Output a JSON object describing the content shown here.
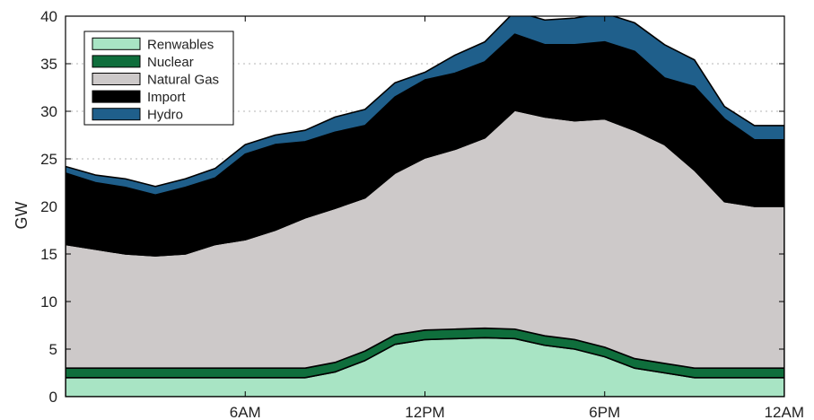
{
  "chart_data": {
    "type": "area",
    "stacked": true,
    "title": "",
    "xlabel": "",
    "ylabel": "GW",
    "xlim": [
      0,
      24
    ],
    "ylim": [
      0,
      40
    ],
    "x_ticks": [
      6,
      12,
      18,
      24
    ],
    "x_tick_labels": [
      "6AM",
      "12PM",
      "6PM",
      "12AM"
    ],
    "y_ticks": [
      0,
      5,
      10,
      15,
      20,
      25,
      30,
      35,
      40
    ],
    "y_tick_labels": [
      "0",
      "5",
      "10",
      "15",
      "20",
      "25",
      "30",
      "35",
      "40"
    ],
    "grid": "horizontal dotted",
    "legend_position": "top-left",
    "x": [
      0,
      1,
      2,
      3,
      4,
      5,
      6,
      7,
      8,
      9,
      10,
      11,
      12,
      13,
      14,
      15,
      16,
      17,
      18,
      19,
      20,
      21,
      22,
      23,
      24
    ],
    "series": [
      {
        "name": "Renwables",
        "color": "#a8e4c4",
        "values": [
          2,
          2,
          2,
          2,
          2,
          2,
          2,
          2,
          2,
          2.6,
          3.8,
          5.5,
          6,
          6.1,
          6.2,
          6.1,
          5.4,
          5,
          4.2,
          3,
          2.5,
          2,
          2,
          2,
          2
        ]
      },
      {
        "name": "Nuclear",
        "color": "#0f6e3c",
        "values": [
          1,
          1,
          1,
          1,
          1,
          1,
          1,
          1,
          1,
          1,
          1,
          1,
          1,
          1,
          1,
          1,
          1,
          1,
          1,
          1,
          1,
          1,
          1,
          1,
          1
        ]
      },
      {
        "name": "Natural Gas",
        "color": "#cdc9c9",
        "values": [
          13,
          12.5,
          12,
          11.8,
          12,
          13,
          13.5,
          14.5,
          15.8,
          16.2,
          16.1,
          17,
          18.1,
          18.9,
          20,
          23,
          23,
          23,
          24,
          24,
          23,
          20.8,
          17.5,
          17,
          17
        ]
      },
      {
        "name": "Import",
        "color": "#000000",
        "values": [
          7.5,
          7,
          7,
          6.4,
          7,
          7,
          9,
          9,
          8,
          8,
          7.6,
          8,
          8.2,
          8,
          8,
          8,
          7.6,
          8,
          8.1,
          8.3,
          7,
          8.8,
          8.7,
          7,
          7
        ]
      },
      {
        "name": "Hydro",
        "color": "#1f5f8b",
        "values": [
          0.7,
          0.8,
          0.9,
          0.9,
          0.9,
          1,
          1,
          1,
          1.2,
          1.6,
          1.7,
          1.5,
          0.8,
          1.9,
          2.1,
          2.4,
          2.6,
          2.8,
          3,
          3,
          3.5,
          2.8,
          1.3,
          1.5,
          1.5
        ]
      }
    ]
  }
}
